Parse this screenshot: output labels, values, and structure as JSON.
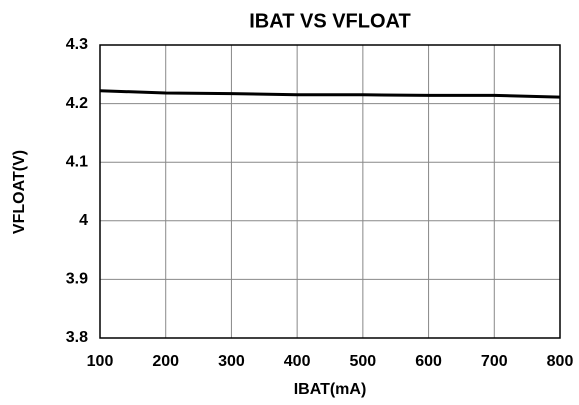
{
  "chart_data": {
    "type": "line",
    "title": "IBAT VS VFLOAT",
    "x_label": "IBAT(mA)",
    "y_label": "VFLOAT(V)",
    "x": [
      100,
      200,
      300,
      400,
      500,
      600,
      700,
      800
    ],
    "series": [
      {
        "name": "VFLOAT",
        "color": "#000000",
        "values": [
          4.222,
          4.218,
          4.217,
          4.215,
          4.215,
          4.214,
          4.214,
          4.211
        ]
      }
    ],
    "xlim": [
      100,
      800
    ],
    "xticks": [
      100,
      200,
      300,
      400,
      500,
      600,
      700,
      800
    ],
    "ylim": [
      3.8,
      4.3
    ],
    "yticks": [
      3.8,
      3.9,
      4,
      4.1,
      4.2,
      4.3
    ],
    "grid": true
  }
}
